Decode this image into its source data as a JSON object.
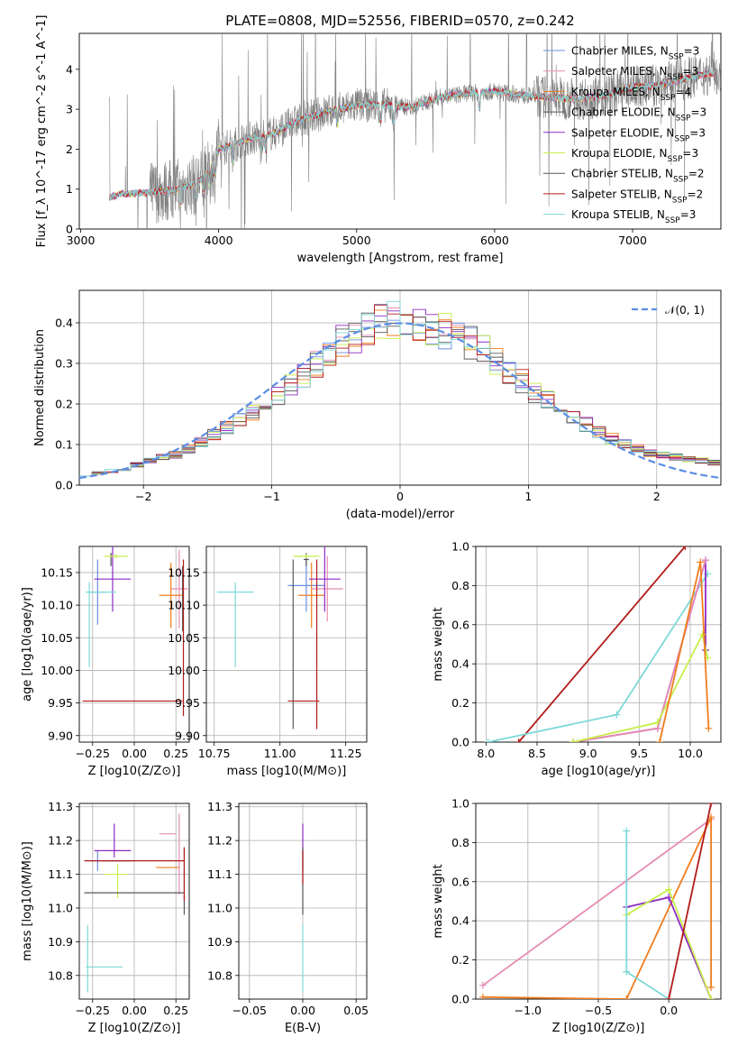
{
  "figure_title": "PLATE=0808, MJD=52556, FIBERID=0570, z=0.242",
  "colors": {
    "Chabrier MILES": "#6b8de3",
    "Salpeter MILES": "#e58cb4",
    "Kroupa MILES": "#f07d1c",
    "Chabrier ELODIE": "#555555",
    "Salpeter ELODIE": "#8e2bc4",
    "Kroupa ELODIE": "#c7ee4a",
    "Chabrier STELIB": "#5a5a5a",
    "Salpeter STELIB": "#b31b1b",
    "Kroupa STELIB": "#7ed8d8",
    "normal": "#5b8ee6",
    "data": "#808080"
  },
  "chart_data": [
    {
      "id": "spectrum",
      "type": "line",
      "title": "PLATE=0808, MJD=52556, FIBERID=0570, z=0.242",
      "xlabel": "wavelength [Angstrom, rest frame]",
      "ylabel": "Flux [f_λ 10^-17 erg cm^-2 s^-1 A^-1]",
      "xlim": [
        2990,
        7640
      ],
      "ylim": [
        0,
        4.9
      ],
      "xticks": [
        3000,
        4000,
        5000,
        6000,
        7000
      ],
      "yticks": [
        0,
        1,
        2,
        3,
        4
      ],
      "legend_position": "right",
      "series": [
        {
          "name": "Chabrier MILES, N_SSP=3"
        },
        {
          "name": "Salpeter MILES, N_SSP=3"
        },
        {
          "name": "Kroupa MILES, N_SSP=4"
        },
        {
          "name": "Chabrier ELODIE, N_SSP=3"
        },
        {
          "name": "Salpeter ELODIE, N_SSP=3"
        },
        {
          "name": "Kroupa ELODIE, N_SSP=3"
        },
        {
          "name": "Chabrier STELIB, N_SSP=2"
        },
        {
          "name": "Salpeter STELIB, N_SSP=2"
        },
        {
          "name": "Kroupa STELIB, N_SSP=3"
        }
      ],
      "continuum": {
        "x": [
          3210,
          3300,
          3450,
          3600,
          3700,
          3800,
          3900,
          3950,
          4000,
          4100,
          4200,
          4400,
          4600,
          4800,
          5000,
          5200,
          5400,
          5600,
          5800,
          6000,
          6200,
          6400,
          6600,
          6800,
          7000,
          7200,
          7400,
          7600
        ],
        "y": [
          0.8,
          0.88,
          0.9,
          0.95,
          1.0,
          1.1,
          1.3,
          1.6,
          2.0,
          2.1,
          2.25,
          2.4,
          2.75,
          2.95,
          3.1,
          3.1,
          3.05,
          3.3,
          3.4,
          3.45,
          3.35,
          3.3,
          3.25,
          3.35,
          3.55,
          3.6,
          3.8,
          3.9
        ]
      }
    },
    {
      "id": "residuals",
      "type": "line",
      "xlabel": "(data-model)/error",
      "ylabel": "Normed distribution",
      "xlim": [
        -2.5,
        2.5
      ],
      "ylim": [
        0,
        0.48
      ],
      "xticks": [
        -2,
        -1,
        0,
        1,
        2
      ],
      "yticks": [
        0.0,
        0.1,
        0.2,
        0.3,
        0.4
      ],
      "legend_position": "top-right",
      "normal_label": "𝒩(0, 1)",
      "bins": [
        -2.5,
        -2.4,
        -2.3,
        -2.2,
        -2.1,
        -2.0,
        -1.9,
        -1.8,
        -1.7,
        -1.6,
        -1.5,
        -1.4,
        -1.3,
        -1.2,
        -1.1,
        -1.0,
        -0.9,
        -0.8,
        -0.7,
        -0.6,
        -0.5,
        -0.4,
        -0.3,
        -0.2,
        -0.1,
        0.0,
        0.1,
        0.2,
        0.3,
        0.4,
        0.5,
        0.6,
        0.7,
        0.8,
        0.9,
        1.0,
        1.1,
        1.2,
        1.3,
        1.4,
        1.5,
        1.6,
        1.7,
        1.8,
        1.9,
        2.0,
        2.1,
        2.2,
        2.3,
        2.4
      ],
      "base_values": [
        0.025,
        0.03,
        0.035,
        0.04,
        0.05,
        0.06,
        0.068,
        0.075,
        0.09,
        0.105,
        0.125,
        0.14,
        0.16,
        0.18,
        0.2,
        0.22,
        0.245,
        0.27,
        0.3,
        0.33,
        0.355,
        0.37,
        0.39,
        0.4,
        0.41,
        0.4,
        0.395,
        0.39,
        0.38,
        0.37,
        0.35,
        0.33,
        0.305,
        0.28,
        0.255,
        0.23,
        0.21,
        0.19,
        0.17,
        0.15,
        0.13,
        0.115,
        0.1,
        0.09,
        0.08,
        0.075,
        0.07,
        0.065,
        0.06,
        0.055
      ]
    },
    {
      "id": "age-vs-Z",
      "type": "scatter",
      "xlabel": "Z [log10(Z/Z⊙)]",
      "ylabel": "age [log10(age/yr)]",
      "xlim": [
        -0.33,
        0.33
      ],
      "ylim": [
        9.89,
        10.19
      ],
      "xticks": [
        -0.25,
        0.0,
        0.25
      ],
      "yticks": [
        9.9,
        9.95,
        10.0,
        10.05,
        10.1,
        10.15
      ]
    },
    {
      "id": "age-vs-mass",
      "type": "scatter",
      "xlabel": "mass [log10(M/M⊙)]",
      "ylabel": "",
      "xlim": [
        10.72,
        11.33
      ],
      "ylim": [
        9.89,
        10.19
      ],
      "xticks": [
        10.75,
        11.0,
        11.25
      ],
      "yticks": [
        9.9,
        9.95,
        10.0,
        10.05,
        10.1,
        10.15
      ]
    },
    {
      "id": "weight-vs-age",
      "type": "line",
      "xlabel": "age [log10(age/yr)]",
      "ylabel": "mass weight",
      "xlim": [
        7.9,
        10.3
      ],
      "ylim": [
        0,
        1.0
      ],
      "xticks": [
        8.0,
        8.5,
        9.0,
        9.5,
        10.0
      ],
      "yticks": [
        0.0,
        0.2,
        0.4,
        0.6,
        0.8,
        1.0
      ]
    },
    {
      "id": "mass-vs-Z",
      "type": "scatter",
      "xlabel": "Z [log10(Z/Z⊙)]",
      "ylabel": "mass [log10(M/M⊙)]",
      "xlim": [
        -0.33,
        0.33
      ],
      "ylim": [
        10.73,
        11.31
      ],
      "xticks": [
        -0.25,
        0.0,
        0.25
      ],
      "yticks": [
        10.8,
        10.9,
        11.0,
        11.1,
        11.2,
        11.3
      ]
    },
    {
      "id": "mass-vs-ebv",
      "type": "scatter",
      "xlabel": "E(B-V)",
      "ylabel": "",
      "xlim": [
        -0.06,
        0.06
      ],
      "ylim": [
        10.73,
        11.31
      ],
      "xticks": [
        -0.05,
        0.0,
        0.05
      ],
      "yticks": [
        10.8,
        10.9,
        11.0,
        11.1,
        11.2,
        11.3
      ]
    },
    {
      "id": "weight-vs-Z",
      "type": "line",
      "xlabel": "Z [log10(Z/Z⊙)]",
      "ylabel": "mass weight",
      "xlim": [
        -1.37,
        0.37
      ],
      "ylim": [
        0,
        1.0
      ],
      "xticks": [
        -1.0,
        -0.5,
        0.0
      ],
      "yticks": [
        0.0,
        0.2,
        0.4,
        0.6,
        0.8,
        1.0
      ]
    }
  ],
  "errorbars": {
    "age-vs-Z": [
      {
        "s": "Chabrier MILES",
        "x": -0.22,
        "y": 10.12,
        "xe": 0.05,
        "ye": 0.05
      },
      {
        "s": "Salpeter MILES",
        "x": 0.27,
        "y": 10.125,
        "xe": 0.05,
        "ye": 0.06
      },
      {
        "s": "Kroupa MILES",
        "x": 0.22,
        "y": 10.115,
        "xe": 0.07,
        "ye": 0.05
      },
      {
        "s": "Chabrier ELODIE",
        "x": -0.14,
        "y": 10.17,
        "xe": 0.0,
        "ye": 0.01
      },
      {
        "s": "Salpeter ELODIE",
        "x": -0.13,
        "y": 10.14,
        "xe": 0.11,
        "ye": 0.05
      },
      {
        "s": "Kroupa ELODIE",
        "x": -0.11,
        "y": 10.175,
        "xe": 0.07,
        "ye": 0.003
      },
      {
        "s": "Chabrier STELIB",
        "x": 0.29,
        "y": 10.11,
        "xe": 0.0,
        "ye": 0.05
      },
      {
        "s": "Salpeter STELIB",
        "x": 0.295,
        "y": 10.05,
        "xe": 0.0,
        "ye": 0.12
      },
      {
        "s": "Salpeter STELIB",
        "x": -0.01,
        "y": 9.953,
        "xe": 0.3,
        "ye": 0.0
      },
      {
        "s": "Kroupa STELIB",
        "x": -0.27,
        "y": 10.07,
        "xe": 0.0,
        "ye": 0.065
      },
      {
        "s": "Kroupa STELIB",
        "x": -0.2,
        "y": 10.12,
        "xe": 0.09,
        "ye": 0.0
      }
    ],
    "age-vs-mass": [
      {
        "s": "Chabrier MILES",
        "x": 11.1,
        "y": 10.13,
        "xe": 0.07,
        "ye": 0.04
      },
      {
        "s": "Salpeter MILES",
        "x": 11.18,
        "y": 10.125,
        "xe": 0.06,
        "ye": 0.05
      },
      {
        "s": "Kroupa MILES",
        "x": 11.12,
        "y": 10.115,
        "xe": 0.05,
        "ye": 0.05
      },
      {
        "s": "Chabrier ELODIE",
        "x": 11.1,
        "y": 10.17,
        "xe": 0.01,
        "ye": 0.01
      },
      {
        "s": "Salpeter ELODIE",
        "x": 11.17,
        "y": 10.14,
        "xe": 0.06,
        "ye": 0.05
      },
      {
        "s": "Kroupa ELODIE",
        "x": 11.1,
        "y": 10.175,
        "xe": 0.05,
        "ye": 0.003
      },
      {
        "s": "Chabrier STELIB",
        "x": 11.05,
        "y": 10.04,
        "xe": 0.0,
        "ye": 0.13
      },
      {
        "s": "Salpeter STELIB",
        "x": 11.14,
        "y": 10.04,
        "xe": 0.0,
        "ye": 0.13
      },
      {
        "s": "Salpeter STELIB",
        "x": 11.09,
        "y": 9.953,
        "xe": 0.06,
        "ye": 0.0
      },
      {
        "s": "Kroupa STELIB",
        "x": 10.83,
        "y": 10.12,
        "xe": 0.07,
        "ye": 0.0
      },
      {
        "s": "Kroupa STELIB",
        "x": 10.83,
        "y": 10.07,
        "xe": 0.0,
        "ye": 0.065
      }
    ],
    "mass-vs-Z": [
      {
        "s": "Chabrier MILES",
        "x": -0.22,
        "y": 11.14,
        "xe": 0.05,
        "ye": 0.03
      },
      {
        "s": "Salpeter MILES",
        "x": 0.2,
        "y": 11.22,
        "xe": 0.05,
        "ye": 0.0
      },
      {
        "s": "Salpeter MILES",
        "x": 0.27,
        "y": 11.16,
        "xe": 0.0,
        "ye": 0.12
      },
      {
        "s": "Kroupa MILES",
        "x": 0.2,
        "y": 11.12,
        "xe": 0.07,
        "ye": 0.0
      },
      {
        "s": "Chabrier ELODIE",
        "x": -0.09,
        "y": 11.14,
        "xe": 0.08,
        "ye": 0.0
      },
      {
        "s": "Salpeter ELODIE",
        "x": -0.13,
        "y": 11.17,
        "xe": 0.11,
        "ye": 0.0
      },
      {
        "s": "Salpeter ELODIE",
        "x": -0.12,
        "y": 11.2,
        "xe": 0.0,
        "ye": 0.05
      },
      {
        "s": "Kroupa ELODIE",
        "x": -0.11,
        "y": 11.1,
        "xe": 0.07,
        "ye": 0.0
      },
      {
        "s": "Kroupa ELODIE",
        "x": -0.1,
        "y": 11.08,
        "xe": 0.0,
        "ye": 0.05
      },
      {
        "s": "Chabrier STELIB",
        "x": 0.0,
        "y": 11.045,
        "xe": 0.3,
        "ye": 0.0
      },
      {
        "s": "Chabrier STELIB",
        "x": 0.3,
        "y": 11.08,
        "xe": 0.0,
        "ye": 0.1
      },
      {
        "s": "Salpeter STELIB",
        "x": 0.0,
        "y": 11.14,
        "xe": 0.3,
        "ye": 0.0
      },
      {
        "s": "Salpeter STELIB",
        "x": 0.3,
        "y": 11.1,
        "xe": 0.0,
        "ye": 0.08
      },
      {
        "s": "Kroupa STELIB",
        "x": -0.18,
        "y": 10.825,
        "xe": 0.11,
        "ye": 0.0
      },
      {
        "s": "Kroupa STELIB",
        "x": -0.28,
        "y": 10.85,
        "xe": 0.0,
        "ye": 0.1
      }
    ],
    "mass-vs-ebv": [
      {
        "s": "Salpeter ELODIE",
        "x": 0.0,
        "y": 11.18,
        "xe": 0.0,
        "ye": 0.07
      },
      {
        "s": "Chabrier ELODIE",
        "x": 0.0,
        "y": 11.08,
        "xe": 0.0,
        "ye": 0.1
      },
      {
        "s": "Salpeter STELIB",
        "x": 0.0,
        "y": 11.12,
        "xe": 0.0,
        "ye": 0.05
      },
      {
        "s": "Kroupa STELIB",
        "x": 0.0,
        "y": 10.85,
        "xe": 0.0,
        "ye": 0.1
      }
    ]
  },
  "weight_lines": {
    "weight-vs-age": [
      {
        "s": "Salpeter STELIB",
        "pts": [
          [
            8.32,
            0.0
          ],
          [
            9.95,
            1.0
          ]
        ]
      },
      {
        "s": "Kroupa STELIB",
        "pts": [
          [
            8.02,
            0.0
          ],
          [
            9.28,
            0.14
          ],
          [
            10.17,
            0.86
          ]
        ]
      },
      {
        "s": "Salpeter ELODIE",
        "pts": [
          [
            8.85,
            0.0
          ],
          [
            9.68,
            0.07
          ],
          [
            10.15,
            0.93
          ],
          [
            10.15,
            0.47
          ]
        ]
      },
      {
        "s": "Salpeter MILES",
        "pts": [
          [
            8.85,
            0.0
          ],
          [
            9.68,
            0.07
          ],
          [
            10.15,
            0.93
          ]
        ]
      },
      {
        "s": "Kroupa ELODIE",
        "pts": [
          [
            8.85,
            0.0
          ],
          [
            9.68,
            0.1
          ],
          [
            10.12,
            0.55
          ],
          [
            10.17,
            0.43
          ]
        ]
      },
      {
        "s": "Kroupa MILES",
        "pts": [
          [
            9.7,
            0.0
          ],
          [
            10.1,
            0.92
          ],
          [
            10.18,
            0.07
          ]
        ]
      }
    ],
    "weight-vs-Z": [
      {
        "s": "Salpeter MILES",
        "pts": [
          [
            -1.32,
            0.07
          ],
          [
            0.3,
            0.92
          ]
        ]
      },
      {
        "s": "Kroupa MILES",
        "pts": [
          [
            -1.32,
            0.01
          ],
          [
            -0.3,
            0.0
          ],
          [
            0.3,
            0.93
          ],
          [
            0.3,
            0.06
          ]
        ]
      },
      {
        "s": "Salpeter ELODIE",
        "pts": [
          [
            -0.3,
            0.47
          ],
          [
            0.0,
            0.52
          ],
          [
            0.3,
            0.0
          ]
        ]
      },
      {
        "s": "Kroupa ELODIE",
        "pts": [
          [
            -0.3,
            0.43
          ],
          [
            0.0,
            0.56
          ],
          [
            0.3,
            0.0
          ]
        ]
      },
      {
        "s": "Kroupa STELIB",
        "pts": [
          [
            -0.3,
            0.86
          ],
          [
            -0.3,
            0.14
          ],
          [
            0.0,
            0.0
          ]
        ]
      },
      {
        "s": "Salpeter STELIB",
        "pts": [
          [
            0.0,
            0.0
          ],
          [
            0.3,
            1.0
          ]
        ]
      }
    ]
  }
}
